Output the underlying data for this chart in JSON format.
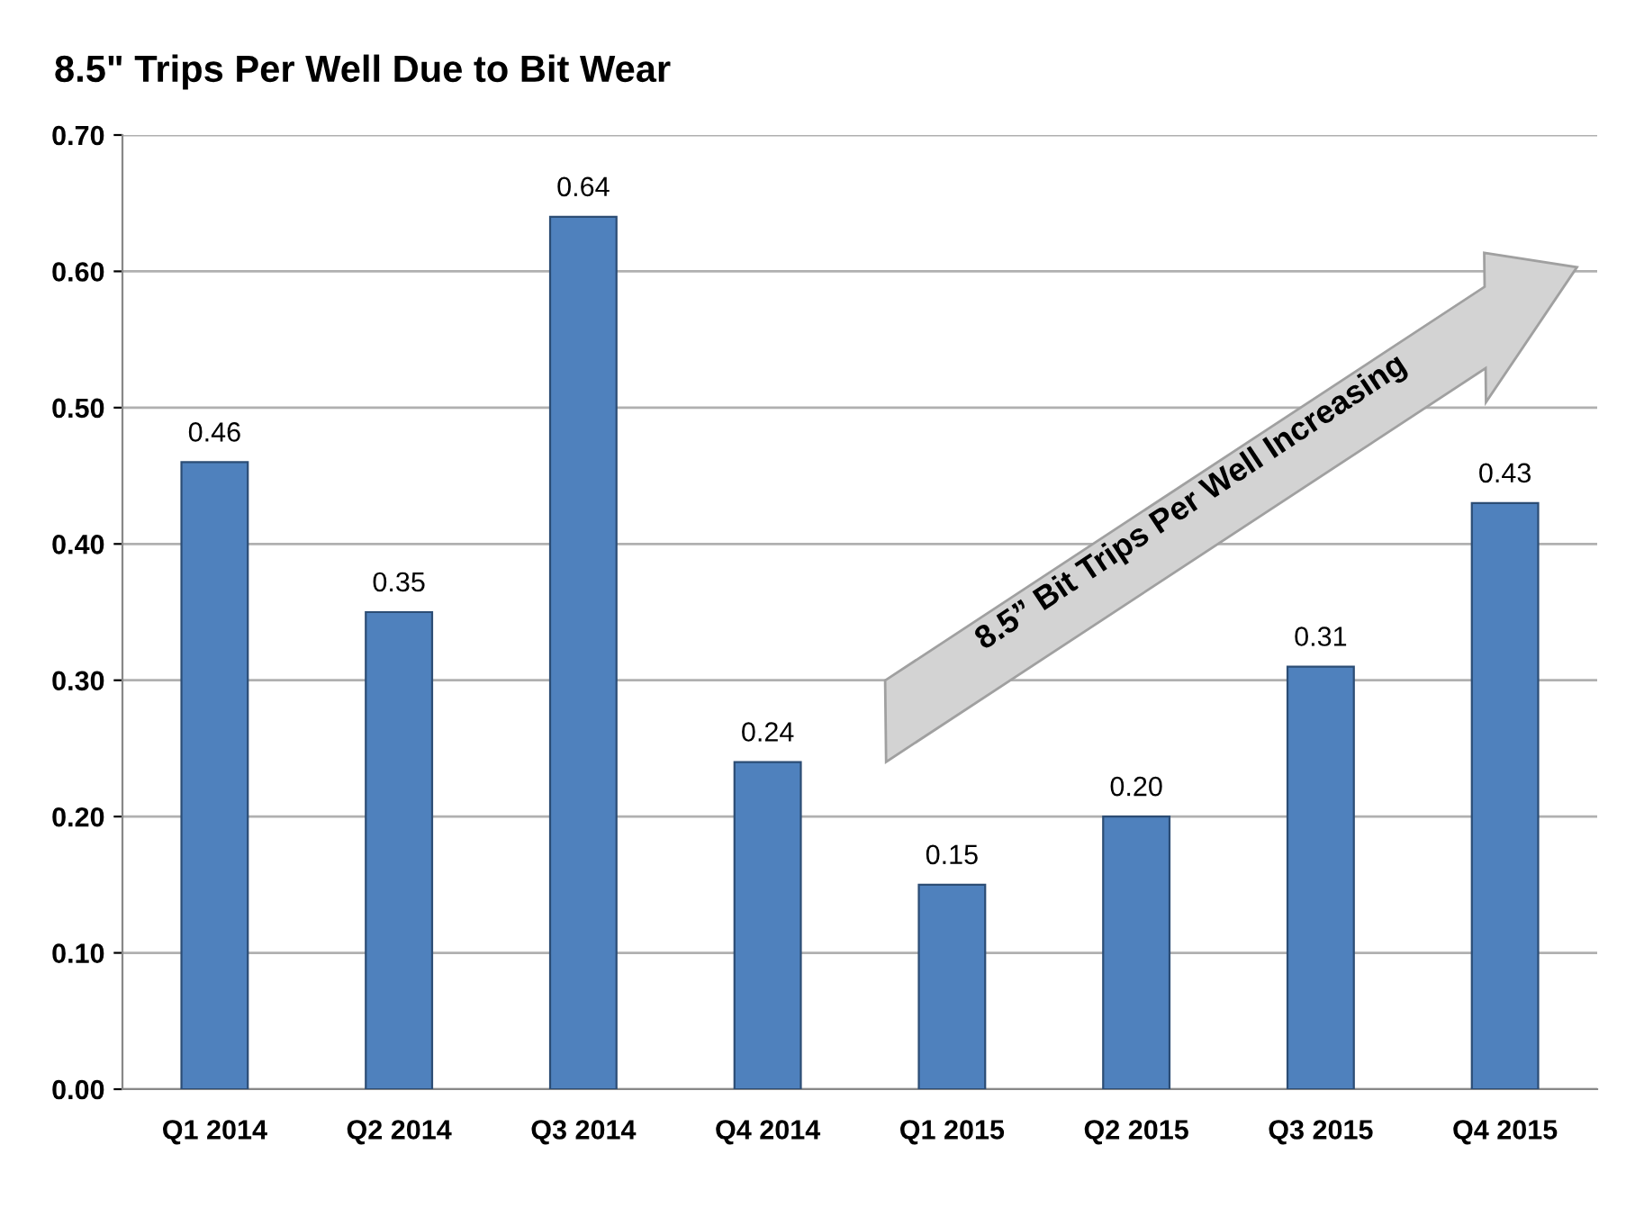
{
  "chart_data": {
    "type": "bar",
    "title": "8.5\" Trips Per Well Due to Bit Wear",
    "categories": [
      "Q1 2014",
      "Q2 2014",
      "Q3 2014",
      "Q4 2014",
      "Q1 2015",
      "Q2 2015",
      "Q3 2015",
      "Q4 2015"
    ],
    "values": [
      0.46,
      0.35,
      0.64,
      0.24,
      0.15,
      0.2,
      0.31,
      0.43
    ],
    "value_labels": [
      "0.46",
      "0.35",
      "0.64",
      "0.24",
      "0.15",
      "0.20",
      "0.31",
      "0.43"
    ],
    "color": "#4f81bd",
    "ylim": [
      0,
      0.7
    ],
    "yticks": [
      {
        "value": 0,
        "label": "0.00"
      },
      {
        "value": 0.1,
        "label": "0.10"
      },
      {
        "value": 0.2,
        "label": "0.20"
      },
      {
        "value": 0.3,
        "label": "0.30"
      },
      {
        "value": 0.4,
        "label": "0.40"
      },
      {
        "value": 0.5,
        "label": "0.50"
      },
      {
        "value": 0.6,
        "label": "0.60"
      },
      {
        "value": 0.7,
        "label": "0.70"
      }
    ],
    "grid": "y",
    "legend": false,
    "annotations": [
      "8.5” Bit Trips Per Well Increasing"
    ]
  }
}
